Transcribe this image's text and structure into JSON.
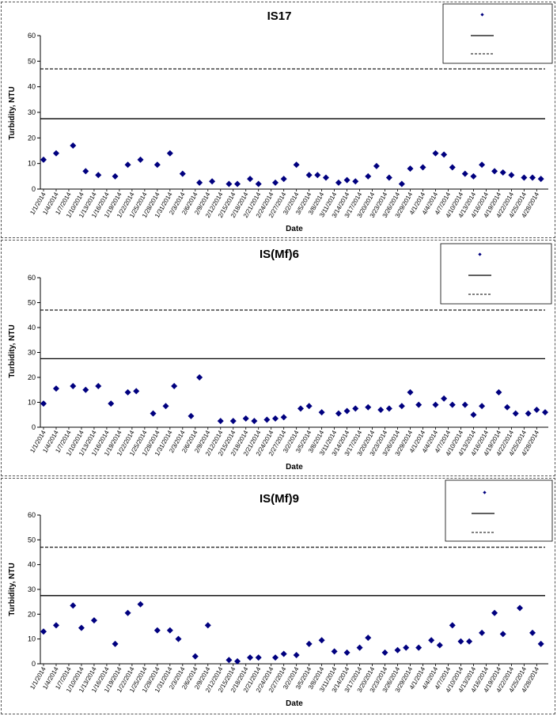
{
  "chart_data": [
    {
      "type": "scatter",
      "title": "IS17",
      "xlabel": "Date",
      "ylabel": "Turbidity, NTU",
      "ylim": [
        0,
        60
      ],
      "yticks": [
        "0",
        "10",
        "20",
        "30",
        "40",
        "50",
        "60"
      ],
      "xticks": [
        "1/1/2014",
        "1/4/2014",
        "1/7/2014",
        "1/10/2014",
        "1/13/2014",
        "1/16/2014",
        "1/19/2014",
        "1/22/2014",
        "1/25/2014",
        "1/28/2014",
        "1/31/2014",
        "2/3/2014",
        "2/6/2014",
        "2/9/2014",
        "2/12/2014",
        "2/15/2014",
        "2/18/2014",
        "2/21/2014",
        "2/24/2014",
        "2/27/2014",
        "3/2/2014",
        "3/5/2014",
        "3/8/2014",
        "3/11/2014",
        "3/14/2014",
        "3/17/2014",
        "3/20/2014",
        "3/23/2014",
        "3/26/2014",
        "3/29/2014",
        "4/1/2014",
        "4/4/2014",
        "4/7/2014",
        "4/10/2014",
        "4/13/2014",
        "4/16/2014",
        "4/19/2014",
        "4/22/2014",
        "4/25/2014",
        "4/28/2014"
      ],
      "xrange": [
        0,
        119
      ],
      "points": [
        [
          0,
          11.5
        ],
        [
          3,
          14
        ],
        [
          7,
          17
        ],
        [
          10,
          7
        ],
        [
          13,
          5.5
        ],
        [
          17,
          5
        ],
        [
          20,
          9.5
        ],
        [
          23,
          11.5
        ],
        [
          27,
          9.5
        ],
        [
          30,
          14
        ],
        [
          33,
          6
        ],
        [
          37,
          2.5
        ],
        [
          40,
          3
        ],
        [
          44,
          2
        ],
        [
          46,
          2
        ],
        [
          49,
          4
        ],
        [
          51,
          2
        ],
        [
          55,
          2.5
        ],
        [
          57,
          4
        ],
        [
          60,
          9.5
        ],
        [
          63,
          5.5
        ],
        [
          65,
          5.5
        ],
        [
          67,
          4.5
        ],
        [
          70,
          2.5
        ],
        [
          72,
          3.5
        ],
        [
          74,
          3
        ],
        [
          77,
          5
        ],
        [
          79,
          9
        ],
        [
          82,
          4.5
        ],
        [
          85,
          2
        ],
        [
          87,
          8
        ],
        [
          90,
          8.5
        ],
        [
          93,
          14
        ],
        [
          95,
          13.5
        ],
        [
          97,
          8.5
        ],
        [
          100,
          6
        ],
        [
          102,
          5
        ],
        [
          104,
          9.5
        ],
        [
          107,
          7
        ],
        [
          109,
          6.5
        ],
        [
          111,
          5.5
        ],
        [
          114,
          4.5
        ],
        [
          116,
          4.5
        ],
        [
          118,
          4
        ]
      ],
      "hlines": [
        {
          "y": 27.5,
          "style": "solid"
        },
        {
          "y": 47,
          "style": "dashed"
        }
      ],
      "legend": [
        "",
        "",
        ""
      ],
      "legend_position": "top-right",
      "colors": {
        "marker": "#00007f",
        "line": "#000000"
      }
    },
    {
      "type": "scatter",
      "title": "IS(Mf)6",
      "xlabel": "Date",
      "ylabel": "Turbidity, NTU",
      "ylim": [
        0,
        60
      ],
      "yticks": [
        "0",
        "10",
        "20",
        "30",
        "40",
        "50",
        "60"
      ],
      "xticks": [
        "1/1/2014",
        "1/4/2014",
        "1/7/2014",
        "1/10/2014",
        "1/13/2014",
        "1/16/2014",
        "1/19/2014",
        "1/22/2014",
        "1/25/2014",
        "1/28/2014",
        "1/31/2014",
        "2/3/2014",
        "2/6/2014",
        "2/9/2014",
        "2/12/2014",
        "2/15/2014",
        "2/18/2014",
        "2/21/2014",
        "2/24/2014",
        "2/27/2014",
        "3/2/2014",
        "3/5/2014",
        "3/8/2014",
        "3/11/2014",
        "3/14/2014",
        "3/17/2014",
        "3/20/2014",
        "3/23/2014",
        "3/26/2014",
        "3/29/2014",
        "4/1/2014",
        "4/4/2014",
        "4/7/2014",
        "4/10/2014",
        "4/13/2014",
        "4/16/2014",
        "4/19/2014",
        "4/22/2014",
        "4/25/2014",
        "4/28/2014"
      ],
      "xrange": [
        0,
        119
      ],
      "points": [
        [
          0,
          9.5
        ],
        [
          3,
          15.5
        ],
        [
          7,
          16.5
        ],
        [
          10,
          15
        ],
        [
          13,
          16.5
        ],
        [
          16,
          9.5
        ],
        [
          20,
          14
        ],
        [
          22,
          14.5
        ],
        [
          26,
          5.5
        ],
        [
          29,
          8.5
        ],
        [
          31,
          16.5
        ],
        [
          35,
          4.5
        ],
        [
          37,
          20
        ],
        [
          42,
          2.5
        ],
        [
          45,
          2.5
        ],
        [
          48,
          3.5
        ],
        [
          50,
          2.5
        ],
        [
          53,
          3
        ],
        [
          55,
          3.5
        ],
        [
          57,
          4
        ],
        [
          61,
          7.5
        ],
        [
          63,
          8.5
        ],
        [
          66,
          6
        ],
        [
          70,
          5.5
        ],
        [
          72,
          6.5
        ],
        [
          74,
          7.5
        ],
        [
          77,
          8
        ],
        [
          80,
          7
        ],
        [
          82,
          7.5
        ],
        [
          85,
          8.5
        ],
        [
          87,
          14
        ],
        [
          89,
          9
        ],
        [
          93,
          9
        ],
        [
          95,
          11.5
        ],
        [
          97,
          9
        ],
        [
          100,
          9
        ],
        [
          102,
          5
        ],
        [
          104,
          8.5
        ],
        [
          108,
          14
        ],
        [
          110,
          8
        ],
        [
          112,
          5.5
        ],
        [
          115,
          5.5
        ],
        [
          117,
          7
        ],
        [
          119,
          6
        ]
      ],
      "hlines": [
        {
          "y": 27.5,
          "style": "solid"
        },
        {
          "y": 47,
          "style": "dashed"
        }
      ],
      "legend": [
        "",
        "",
        ""
      ],
      "legend_position": "top-right",
      "colors": {
        "marker": "#00007f",
        "line": "#000000"
      }
    },
    {
      "type": "scatter",
      "title": "IS(Mf)9",
      "xlabel": "Date",
      "ylabel": "Turbidity, NTU",
      "ylim": [
        0,
        60
      ],
      "yticks": [
        "0",
        "10",
        "20",
        "30",
        "40",
        "50",
        "60"
      ],
      "xticks": [
        "1/1/2014",
        "1/4/2014",
        "1/7/2014",
        "1/10/2014",
        "1/13/2014",
        "1/16/2014",
        "1/19/2014",
        "1/22/2014",
        "1/25/2014",
        "1/28/2014",
        "1/31/2014",
        "2/3/2014",
        "2/6/2014",
        "2/9/2014",
        "2/12/2014",
        "2/15/2014",
        "2/18/2014",
        "2/21/2014",
        "2/24/2014",
        "2/27/2014",
        "3/2/2014",
        "3/5/2014",
        "3/8/2014",
        "3/11/2014",
        "3/14/2014",
        "3/17/2014",
        "3/20/2014",
        "3/23/2014",
        "3/26/2014",
        "3/29/2014",
        "4/1/2014",
        "4/4/2014",
        "4/7/2014",
        "4/10/2014",
        "4/13/2014",
        "4/16/2014",
        "4/19/2014",
        "4/22/2014",
        "4/25/2014",
        "4/28/2014"
      ],
      "xrange": [
        0,
        119
      ],
      "points": [
        [
          0,
          13
        ],
        [
          3,
          15.5
        ],
        [
          7,
          23.5
        ],
        [
          9,
          14.5
        ],
        [
          12,
          17.5
        ],
        [
          17,
          8
        ],
        [
          20,
          20.5
        ],
        [
          23,
          24
        ],
        [
          27,
          13.5
        ],
        [
          30,
          13.5
        ],
        [
          32,
          10
        ],
        [
          36,
          3
        ],
        [
          39,
          15.5
        ],
        [
          44,
          1.5
        ],
        [
          46,
          1
        ],
        [
          49,
          2.5
        ],
        [
          51,
          2.5
        ],
        [
          55,
          2.5
        ],
        [
          57,
          4
        ],
        [
          60,
          3.5
        ],
        [
          63,
          8
        ],
        [
          66,
          9.5
        ],
        [
          69,
          5
        ],
        [
          72,
          4.5
        ],
        [
          75,
          6.5
        ],
        [
          77,
          10.5
        ],
        [
          81,
          4.5
        ],
        [
          84,
          5.5
        ],
        [
          86,
          6.5
        ],
        [
          89,
          6.5
        ],
        [
          92,
          9.5
        ],
        [
          94,
          7.5
        ],
        [
          97,
          15.5
        ],
        [
          99,
          9
        ],
        [
          101,
          9
        ],
        [
          104,
          12.5
        ],
        [
          107,
          20.5
        ],
        [
          109,
          12
        ],
        [
          113,
          22.5
        ],
        [
          116,
          12.5
        ],
        [
          118,
          8
        ]
      ],
      "hlines": [
        {
          "y": 27.5,
          "style": "solid"
        },
        {
          "y": 47,
          "style": "dashed"
        }
      ],
      "legend": [
        "",
        "",
        ""
      ],
      "legend_position": "top-right",
      "colors": {
        "marker": "#00007f",
        "line": "#000000"
      }
    }
  ]
}
